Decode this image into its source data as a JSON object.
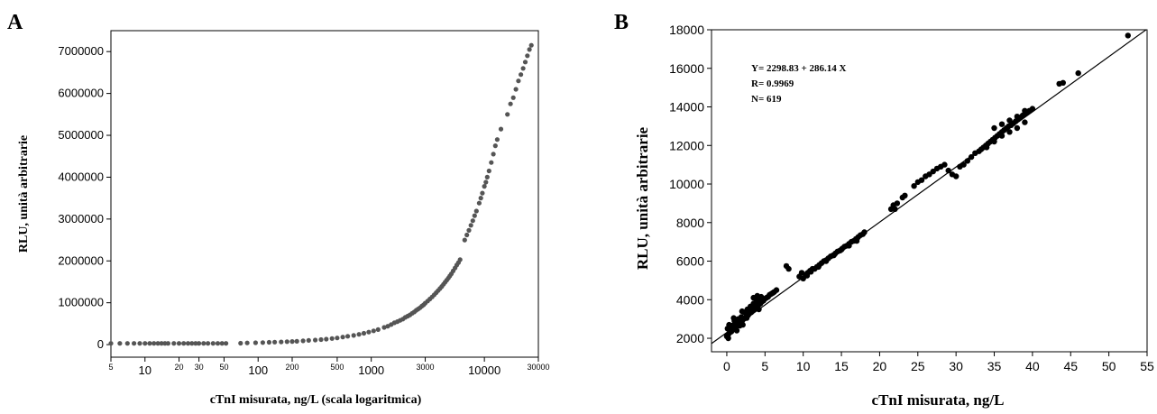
{
  "chart_data": [
    {
      "panel": "A",
      "type": "scatter",
      "xlabel": "cTnI misurata, ng/L (scala logaritmica)",
      "ylabel": "RLU, unità arbitrarie",
      "x_scale": "log",
      "xlim": [
        5,
        30000
      ],
      "ylim": [
        -300000,
        7500000
      ],
      "x_ticks": [
        {
          "v": 5,
          "label": "5",
          "size": "small"
        },
        {
          "v": 10,
          "label": "10",
          "size": "normal"
        },
        {
          "v": 20,
          "label": "20",
          "size": "small"
        },
        {
          "v": 30,
          "label": "30",
          "size": "small"
        },
        {
          "v": 50,
          "label": "50",
          "size": "small"
        },
        {
          "v": 100,
          "label": "100",
          "size": "normal"
        },
        {
          "v": 200,
          "label": "200",
          "size": "small"
        },
        {
          "v": 500,
          "label": "500",
          "size": "small"
        },
        {
          "v": 1000,
          "label": "1000",
          "size": "normal"
        },
        {
          "v": 3000,
          "label": "3000",
          "size": "small"
        },
        {
          "v": 10000,
          "label": "10000",
          "size": "normal"
        },
        {
          "v": 30000,
          "label": "30000",
          "size": "small"
        }
      ],
      "y_ticks": [
        0,
        1000000,
        2000000,
        3000000,
        4000000,
        5000000,
        6000000,
        7000000
      ],
      "y_tick_labels": [
        "0",
        "1000000",
        "2000000",
        "3000000",
        "4000000",
        "5000000",
        "6000000",
        "7000000"
      ],
      "grid": false,
      "point_color": "#555555",
      "points": [
        [
          5,
          30000
        ],
        [
          6,
          30000
        ],
        [
          7,
          30000
        ],
        [
          8,
          30000
        ],
        [
          9,
          30000
        ],
        [
          10,
          30000
        ],
        [
          11,
          30000
        ],
        [
          12,
          30000
        ],
        [
          13,
          30000
        ],
        [
          14,
          30000
        ],
        [
          15,
          30000
        ],
        [
          16,
          30000
        ],
        [
          18,
          30000
        ],
        [
          20,
          30000
        ],
        [
          22,
          30000
        ],
        [
          24,
          30000
        ],
        [
          26,
          30000
        ],
        [
          28,
          30000
        ],
        [
          30,
          30000
        ],
        [
          33,
          30000
        ],
        [
          36,
          30000
        ],
        [
          40,
          30000
        ],
        [
          44,
          30000
        ],
        [
          48,
          30000
        ],
        [
          52,
          30000
        ],
        [
          70,
          35000
        ],
        [
          80,
          40000
        ],
        [
          95,
          45000
        ],
        [
          110,
          50000
        ],
        [
          125,
          55000
        ],
        [
          140,
          60000
        ],
        [
          160,
          65000
        ],
        [
          180,
          70000
        ],
        [
          200,
          75000
        ],
        [
          220,
          80000
        ],
        [
          250,
          90000
        ],
        [
          280,
          100000
        ],
        [
          320,
          110000
        ],
        [
          360,
          120000
        ],
        [
          400,
          130000
        ],
        [
          450,
          145000
        ],
        [
          500,
          160000
        ],
        [
          560,
          180000
        ],
        [
          620,
          200000
        ],
        [
          700,
          220000
        ],
        [
          780,
          245000
        ],
        [
          860,
          270000
        ],
        [
          950,
          300000
        ],
        [
          1050,
          330000
        ],
        [
          1150,
          360000
        ],
        [
          1300,
          410000
        ],
        [
          1400,
          440000
        ],
        [
          1500,
          480000
        ],
        [
          1600,
          520000
        ],
        [
          1700,
          550000
        ],
        [
          1800,
          580000
        ],
        [
          1900,
          610000
        ],
        [
          2000,
          650000
        ],
        [
          2100,
          680000
        ],
        [
          2200,
          710000
        ],
        [
          2300,
          750000
        ],
        [
          2400,
          780000
        ],
        [
          2500,
          820000
        ],
        [
          2600,
          850000
        ],
        [
          2700,
          880000
        ],
        [
          2800,
          920000
        ],
        [
          2900,
          950000
        ],
        [
          3000,
          990000
        ],
        [
          3150,
          1040000
        ],
        [
          3300,
          1090000
        ],
        [
          3450,
          1140000
        ],
        [
          3600,
          1190000
        ],
        [
          3750,
          1240000
        ],
        [
          3900,
          1290000
        ],
        [
          4050,
          1340000
        ],
        [
          4200,
          1390000
        ],
        [
          4350,
          1440000
        ],
        [
          4500,
          1490000
        ],
        [
          4650,
          1540000
        ],
        [
          4800,
          1590000
        ],
        [
          4950,
          1640000
        ],
        [
          5100,
          1690000
        ],
        [
          5300,
          1760000
        ],
        [
          5500,
          1830000
        ],
        [
          5700,
          1900000
        ],
        [
          5900,
          1960000
        ],
        [
          6100,
          2030000
        ],
        [
          6700,
          2500000
        ],
        [
          7000,
          2620000
        ],
        [
          7300,
          2730000
        ],
        [
          7600,
          2850000
        ],
        [
          7900,
          2960000
        ],
        [
          8200,
          3080000
        ],
        [
          8500,
          3190000
        ],
        [
          9000,
          3380000
        ],
        [
          9300,
          3500000
        ],
        [
          9600,
          3620000
        ],
        [
          10000,
          3780000
        ],
        [
          10300,
          3880000
        ],
        [
          10600,
          4000000
        ],
        [
          11000,
          4150000
        ],
        [
          11500,
          4350000
        ],
        [
          12000,
          4550000
        ],
        [
          12500,
          4750000
        ],
        [
          13000,
          4900000
        ],
        [
          14000,
          5150000
        ],
        [
          16000,
          5500000
        ],
        [
          17000,
          5750000
        ],
        [
          18000,
          5900000
        ],
        [
          19000,
          6100000
        ],
        [
          20000,
          6300000
        ],
        [
          21000,
          6450000
        ],
        [
          22000,
          6600000
        ],
        [
          23000,
          6750000
        ],
        [
          24000,
          6900000
        ],
        [
          25000,
          7050000
        ],
        [
          26000,
          7150000
        ]
      ]
    },
    {
      "panel": "B",
      "type": "scatter",
      "xlabel": "cTnI misurata, ng/L",
      "ylabel": "RLU, unità arbitrarie",
      "xlim": [
        -2,
        55
      ],
      "ylim": [
        1300,
        18000
      ],
      "x_ticks": [
        0,
        5,
        10,
        15,
        20,
        25,
        30,
        35,
        40,
        45,
        50,
        55
      ],
      "y_ticks": [
        2000,
        4000,
        6000,
        8000,
        10000,
        12000,
        14000,
        16000,
        18000
      ],
      "grid": false,
      "annotation_lines": [
        "Y= 2298.83 + 286.14 X",
        "R= 0.9969",
        "N= 619"
      ],
      "fit_line": {
        "intercept": 2298.83,
        "slope": 286.14
      },
      "point_color": "#000000",
      "points": [
        [
          0,
          2100
        ],
        [
          0.2,
          2200
        ],
        [
          0.4,
          2300
        ],
        [
          0.6,
          2350
        ],
        [
          0.8,
          2450
        ],
        [
          1.0,
          2550
        ],
        [
          1.2,
          2600
        ],
        [
          1.4,
          2700
        ],
        [
          1.6,
          2750
        ],
        [
          1.8,
          2850
        ],
        [
          2.0,
          2900
        ],
        [
          2.2,
          3000
        ],
        [
          2.4,
          3050
        ],
        [
          2.6,
          3150
        ],
        [
          2.8,
          3200
        ],
        [
          3.0,
          3300
        ],
        [
          3.2,
          3350
        ],
        [
          3.4,
          3450
        ],
        [
          3.6,
          3500
        ],
        [
          3.8,
          3600
        ],
        [
          4.0,
          3650
        ],
        [
          4.2,
          3750
        ],
        [
          4.4,
          3800
        ],
        [
          4.6,
          3900
        ],
        [
          4.8,
          3950
        ],
        [
          5.0,
          4050
        ],
        [
          5.2,
          4100
        ],
        [
          5.4,
          4150
        ],
        [
          5.6,
          4250
        ],
        [
          5.8,
          4300
        ],
        [
          6.0,
          4350
        ],
        [
          6.2,
          4400
        ],
        [
          6.5,
          4500
        ],
        [
          0.1,
          2500
        ],
        [
          0.3,
          2700
        ],
        [
          0.5,
          2400
        ],
        [
          0.7,
          2650
        ],
        [
          1.1,
          2800
        ],
        [
          1.5,
          3000
        ],
        [
          1.9,
          3100
        ],
        [
          2.3,
          3350
        ],
        [
          2.7,
          3500
        ],
        [
          3.1,
          3650
        ],
        [
          3.5,
          3800
        ],
        [
          3.9,
          3950
        ],
        [
          4.3,
          4100
        ],
        [
          4.5,
          4150
        ],
        [
          0.2,
          2000
        ],
        [
          1.3,
          2400
        ],
        [
          2.1,
          2700
        ],
        [
          0.9,
          3050
        ],
        [
          2.0,
          3400
        ],
        [
          3.3,
          3550
        ],
        [
          4.2,
          3500
        ],
        [
          3.5,
          4100
        ],
        [
          4.0,
          4200
        ],
        [
          1.0,
          2900
        ],
        [
          2.6,
          3050
        ],
        [
          1.7,
          2650
        ],
        [
          7.8,
          5750
        ],
        [
          8.1,
          5600
        ],
        [
          9.5,
          5200
        ],
        [
          9.8,
          5400
        ],
        [
          10.0,
          5100
        ],
        [
          10.3,
          5300
        ],
        [
          10.6,
          5400
        ],
        [
          10.9,
          5500
        ],
        [
          11.2,
          5600
        ],
        [
          11.5,
          5600
        ],
        [
          11.8,
          5700
        ],
        [
          12.1,
          5800
        ],
        [
          12.4,
          5900
        ],
        [
          12.7,
          6000
        ],
        [
          13.0,
          6050
        ],
        [
          13.3,
          6150
        ],
        [
          13.6,
          6250
        ],
        [
          13.9,
          6300
        ],
        [
          14.2,
          6400
        ],
        [
          14.5,
          6500
        ],
        [
          14.8,
          6550
        ],
        [
          15.1,
          6650
        ],
        [
          15.4,
          6750
        ],
        [
          15.7,
          6800
        ],
        [
          16.0,
          6900
        ],
        [
          16.3,
          7000
        ],
        [
          16.6,
          7050
        ],
        [
          16.9,
          7150
        ],
        [
          17.2,
          7250
        ],
        [
          17.5,
          7350
        ],
        [
          17.8,
          7400
        ],
        [
          18.0,
          7500
        ],
        [
          10.5,
          5250
        ],
        [
          11.0,
          5450
        ],
        [
          12.0,
          5700
        ],
        [
          13.0,
          6000
        ],
        [
          14.0,
          6300
        ],
        [
          15.0,
          6600
        ],
        [
          16.0,
          6800
        ],
        [
          17.0,
          7050
        ],
        [
          21.5,
          8700
        ],
        [
          21.8,
          8900
        ],
        [
          22.0,
          8700
        ],
        [
          22.3,
          9000
        ],
        [
          23.0,
          9300
        ],
        [
          23.3,
          9400
        ],
        [
          24.5,
          9900
        ],
        [
          25.0,
          10100
        ],
        [
          25.5,
          10200
        ],
        [
          26.0,
          10400
        ],
        [
          26.5,
          10500
        ],
        [
          27.0,
          10650
        ],
        [
          27.5,
          10800
        ],
        [
          28.0,
          10900
        ],
        [
          28.5,
          11000
        ],
        [
          29.0,
          10700
        ],
        [
          29.5,
          10500
        ],
        [
          30.0,
          10400
        ],
        [
          30.5,
          10900
        ],
        [
          31.0,
          11000
        ],
        [
          31.5,
          11200
        ],
        [
          32.0,
          11400
        ],
        [
          32.5,
          11600
        ],
        [
          33.0,
          11700
        ],
        [
          33.3,
          11800
        ],
        [
          33.6,
          11900
        ],
        [
          33.9,
          12000
        ],
        [
          34.2,
          12100
        ],
        [
          34.5,
          12200
        ],
        [
          34.8,
          12300
        ],
        [
          35.1,
          12400
        ],
        [
          35.4,
          12500
        ],
        [
          35.7,
          12600
        ],
        [
          36.0,
          12700
        ],
        [
          36.3,
          12800
        ],
        [
          36.6,
          12900
        ],
        [
          36.9,
          13000
        ],
        [
          37.2,
          13050
        ],
        [
          37.5,
          13150
        ],
        [
          37.8,
          13250
        ],
        [
          38.1,
          13350
        ],
        [
          38.4,
          13450
        ],
        [
          38.7,
          13550
        ],
        [
          39.0,
          13650
        ],
        [
          39.3,
          13700
        ],
        [
          39.6,
          13800
        ],
        [
          35.0,
          12900
        ],
        [
          36.0,
          13100
        ],
        [
          37.0,
          13300
        ],
        [
          38.0,
          13500
        ],
        [
          39.0,
          13800
        ],
        [
          34.0,
          11900
        ],
        [
          35.0,
          12200
        ],
        [
          36.0,
          12500
        ],
        [
          37.0,
          12700
        ],
        [
          38.0,
          12900
        ],
        [
          39.0,
          13200
        ],
        [
          40.0,
          13900
        ],
        [
          43.5,
          15200
        ],
        [
          44.0,
          15250
        ],
        [
          46.0,
          15750
        ],
        [
          52.5,
          17700
        ]
      ]
    }
  ]
}
